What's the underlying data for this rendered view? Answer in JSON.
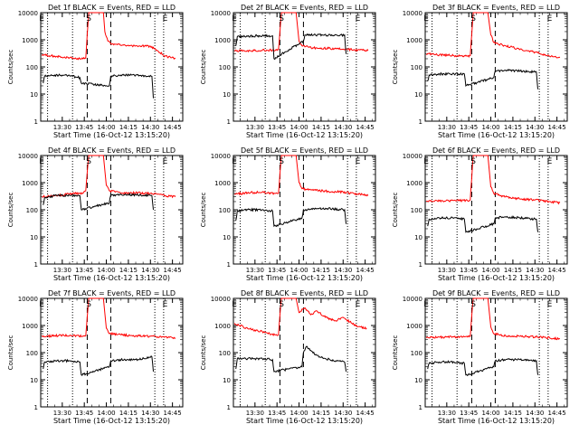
{
  "chart_data": [
    {
      "type": "line",
      "title": "Det 1f BLACK = Events, RED = LLD",
      "xlabel": "Start Time (16-Oct-12 13:15:20)",
      "ylabel": "Counts/sec",
      "ylim": [
        1,
        10000
      ],
      "yscale": "log",
      "x_ticks": [
        "13:30",
        "13:45",
        "14:00",
        "14:15",
        "14:30",
        "14:45"
      ],
      "y_ticks": [
        "1",
        "10",
        "100",
        "1000",
        "10000"
      ],
      "markers": [
        "E",
        "S",
        "E"
      ],
      "series": [
        {
          "name": "RED = LLD",
          "color": "#ff0000",
          "x": [
            "13:16",
            "13:25",
            "13:35",
            "13:44",
            "13:46",
            "13:48",
            "13:58",
            "13:59",
            "14:01",
            "14:04",
            "14:10",
            "14:20",
            "14:30",
            "14:40",
            "14:47"
          ],
          "y": [
            280,
            250,
            220,
            200,
            210,
            10000,
            10000,
            2000,
            900,
            700,
            620,
            600,
            580,
            250,
            200
          ]
        },
        {
          "name": "BLACK = Events",
          "color": "#000000",
          "x": [
            "13:17",
            "13:18",
            "13:25",
            "13:35",
            "13:42",
            "13:43",
            "14:02",
            "14:03",
            "14:10",
            "14:20",
            "14:31",
            "14:32"
          ],
          "y": [
            25,
            45,
            50,
            48,
            40,
            25,
            20,
            45,
            50,
            50,
            45,
            7
          ]
        }
      ]
    },
    {
      "type": "line",
      "title": "Det 2f BLACK = Events, RED = LLD",
      "xlabel": "Start Time (16-Oct-12 13:15:20)",
      "ylabel": "Counts/sec",
      "ylim": [
        1,
        10000
      ],
      "yscale": "log",
      "x_ticks": [
        "13:30",
        "13:45",
        "14:00",
        "14:15",
        "14:30",
        "14:45"
      ],
      "y_ticks": [
        "1",
        "10",
        "100",
        "1000",
        "10000"
      ],
      "markers": [
        "E",
        "S",
        "E"
      ],
      "series": [
        {
          "name": "RED = LLD",
          "color": "#ff0000",
          "x": [
            "13:16",
            "13:25",
            "13:35",
            "13:44",
            "13:46",
            "13:48",
            "13:58",
            "14:00",
            "14:02",
            "14:10",
            "14:20",
            "14:30",
            "14:40",
            "14:47"
          ],
          "y": [
            380,
            400,
            410,
            420,
            430,
            10000,
            10000,
            900,
            600,
            500,
            480,
            450,
            420,
            400
          ]
        },
        {
          "name": "BLACK = Events",
          "color": "#000000",
          "x": [
            "13:17",
            "13:18",
            "13:25",
            "13:35",
            "13:42",
            "13:43",
            "14:03",
            "14:04",
            "14:10",
            "14:20",
            "14:31",
            "14:32"
          ],
          "y": [
            600,
            1300,
            1350,
            1400,
            1400,
            200,
            900,
            1500,
            1500,
            1500,
            1500,
            300
          ]
        }
      ]
    },
    {
      "type": "line",
      "title": "Det 3f BLACK = Events, RED = LLD",
      "xlabel": "Start Time (16-Oct-12 13:15:20)",
      "ylabel": "Counts/sec",
      "ylim": [
        1,
        10000
      ],
      "yscale": "log",
      "x_ticks": [
        "13:30",
        "13:45",
        "14:00",
        "14:15",
        "14:30",
        "14:45"
      ],
      "y_ticks": [
        "1",
        "10",
        "100",
        "1000",
        "10000"
      ],
      "markers": [
        "E",
        "S",
        "E"
      ],
      "series": [
        {
          "name": "RED = LLD",
          "color": "#ff0000",
          "x": [
            "13:16",
            "13:25",
            "13:35",
            "13:44",
            "13:46",
            "13:48",
            "13:58",
            "14:00",
            "14:02",
            "14:10",
            "14:20",
            "14:30",
            "14:40",
            "14:47"
          ],
          "y": [
            300,
            280,
            260,
            250,
            260,
            10000,
            10000,
            1500,
            800,
            600,
            450,
            350,
            250,
            220
          ]
        },
        {
          "name": "BLACK = Events",
          "color": "#000000",
          "x": [
            "13:17",
            "13:18",
            "13:25",
            "13:35",
            "13:42",
            "13:43",
            "14:02",
            "14:03",
            "14:10",
            "14:20",
            "14:31",
            "14:32"
          ],
          "y": [
            30,
            50,
            55,
            55,
            55,
            20,
            40,
            70,
            75,
            70,
            65,
            15
          ]
        }
      ]
    },
    {
      "type": "line",
      "title": "Det 4f BLACK = Events, RED = LLD",
      "xlabel": "Start Time (16-Oct-12 13:15:20)",
      "ylabel": "Counts/sec",
      "ylim": [
        1,
        10000
      ],
      "yscale": "log",
      "x_ticks": [
        "13:30",
        "13:45",
        "14:00",
        "14:15",
        "14:30",
        "14:45"
      ],
      "y_ticks": [
        "1",
        "10",
        "100",
        "1000",
        "10000"
      ],
      "markers": [
        "E",
        "S",
        "E"
      ],
      "series": [
        {
          "name": "RED = LLD",
          "color": "#ff0000",
          "x": [
            "13:16",
            "13:25",
            "13:35",
            "13:44",
            "13:46",
            "13:48",
            "13:58",
            "14:00",
            "14:02",
            "14:10",
            "14:20",
            "14:30",
            "14:40",
            "14:47"
          ],
          "y": [
            300,
            330,
            380,
            420,
            500,
            10000,
            10000,
            800,
            500,
            420,
            420,
            400,
            330,
            300
          ]
        },
        {
          "name": "BLACK = Events",
          "color": "#000000",
          "x": [
            "13:17",
            "13:18",
            "13:25",
            "13:35",
            "13:42",
            "13:43",
            "14:02",
            "14:03",
            "14:10",
            "14:20",
            "14:31",
            "14:32"
          ],
          "y": [
            150,
            280,
            330,
            340,
            330,
            100,
            180,
            340,
            360,
            360,
            330,
            100
          ]
        }
      ]
    },
    {
      "type": "line",
      "title": "Det 5f BLACK = Events, RED = LLD",
      "xlabel": "Start Time (16-Oct-12 13:15:20)",
      "ylabel": "Counts/sec",
      "ylim": [
        1,
        10000
      ],
      "yscale": "log",
      "x_ticks": [
        "13:30",
        "13:45",
        "14:00",
        "14:15",
        "14:30",
        "14:45"
      ],
      "y_ticks": [
        "1",
        "10",
        "100",
        "1000",
        "10000"
      ],
      "markers": [
        "E",
        "S",
        "E"
      ],
      "series": [
        {
          "name": "RED = LLD",
          "color": "#ff0000",
          "x": [
            "13:16",
            "13:25",
            "13:35",
            "13:44",
            "13:46",
            "13:48",
            "13:58",
            "14:00",
            "14:02",
            "14:10",
            "14:20",
            "14:30",
            "14:40",
            "14:47"
          ],
          "y": [
            380,
            420,
            450,
            400,
            400,
            10000,
            10000,
            1000,
            600,
            520,
            480,
            450,
            380,
            330
          ]
        },
        {
          "name": "BLACK = Events",
          "color": "#000000",
          "x": [
            "13:17",
            "13:18",
            "13:25",
            "13:35",
            "13:42",
            "13:43",
            "14:02",
            "14:03",
            "14:10",
            "14:20",
            "14:31",
            "14:32"
          ],
          "y": [
            40,
            90,
            100,
            100,
            90,
            25,
            50,
            100,
            110,
            110,
            100,
            30
          ]
        }
      ]
    },
    {
      "type": "line",
      "title": "Det 6f BLACK = Events, RED = LLD",
      "xlabel": "Start Time (16-Oct-12 13:15:20)",
      "ylabel": "Counts/sec",
      "ylim": [
        1,
        10000
      ],
      "yscale": "log",
      "x_ticks": [
        "13:30",
        "13:45",
        "14:00",
        "14:15",
        "14:30",
        "14:45"
      ],
      "y_ticks": [
        "1",
        "10",
        "100",
        "1000",
        "10000"
      ],
      "markers": [
        "E",
        "S",
        "E"
      ],
      "series": [
        {
          "name": "RED = LLD",
          "color": "#ff0000",
          "x": [
            "13:16",
            "13:25",
            "13:35",
            "13:44",
            "13:46",
            "13:48",
            "13:58",
            "14:00",
            "14:02",
            "14:10",
            "14:20",
            "14:30",
            "14:40",
            "14:47"
          ],
          "y": [
            200,
            210,
            220,
            220,
            230,
            10000,
            10000,
            700,
            400,
            300,
            250,
            230,
            200,
            180
          ]
        },
        {
          "name": "BLACK = Events",
          "color": "#000000",
          "x": [
            "13:17",
            "13:18",
            "13:25",
            "13:35",
            "13:42",
            "13:43",
            "14:02",
            "14:03",
            "14:10",
            "14:20",
            "14:31",
            "14:32"
          ],
          "y": [
            25,
            45,
            50,
            50,
            45,
            15,
            30,
            50,
            55,
            50,
            45,
            15
          ]
        }
      ]
    },
    {
      "type": "line",
      "title": "Det 7f BLACK = Events, RED = LLD",
      "xlabel": "Start Time (16-Oct-12 13:15:20)",
      "ylabel": "Counts/sec",
      "ylim": [
        1,
        10000
      ],
      "yscale": "log",
      "x_ticks": [
        "13:30",
        "13:45",
        "14:00",
        "14:15",
        "14:30",
        "14:45"
      ],
      "y_ticks": [
        "1",
        "10",
        "100",
        "1000",
        "10000"
      ],
      "markers": [
        "E",
        "S",
        "E"
      ],
      "series": [
        {
          "name": "RED = LLD",
          "color": "#ff0000",
          "x": [
            "13:16",
            "13:25",
            "13:35",
            "13:44",
            "13:46",
            "13:48",
            "13:58",
            "14:00",
            "14:02",
            "14:10",
            "14:20",
            "14:30",
            "14:40",
            "14:47"
          ],
          "y": [
            400,
            420,
            430,
            410,
            420,
            10000,
            10000,
            800,
            500,
            450,
            420,
            400,
            380,
            350
          ]
        },
        {
          "name": "BLACK = Events",
          "color": "#000000",
          "x": [
            "13:17",
            "13:18",
            "13:25",
            "13:35",
            "13:42",
            "13:43",
            "14:02",
            "14:03",
            "14:10",
            "14:20",
            "14:31",
            "14:32"
          ],
          "y": [
            25,
            45,
            50,
            50,
            45,
            15,
            30,
            50,
            55,
            55,
            70,
            20
          ]
        }
      ]
    },
    {
      "type": "line",
      "title": "Det 8f BLACK = Events, RED = LLD",
      "xlabel": "Start Time (16-Oct-12 13:15:20)",
      "ylabel": "Counts/sec",
      "ylim": [
        1,
        10000
      ],
      "yscale": "log",
      "x_ticks": [
        "13:30",
        "13:45",
        "14:00",
        "14:15",
        "14:30",
        "14:45"
      ],
      "y_ticks": [
        "1",
        "10",
        "100",
        "1000",
        "10000"
      ],
      "markers": [
        "E",
        "S",
        "E"
      ],
      "series": [
        {
          "name": "RED = LLD",
          "color": "#ff0000",
          "x": [
            "13:16",
            "13:22",
            "13:28",
            "13:35",
            "13:40",
            "13:44",
            "13:46",
            "13:48",
            "13:58",
            "14:00",
            "14:04",
            "14:08",
            "14:12",
            "14:18",
            "14:25",
            "14:30",
            "14:36",
            "14:40",
            "14:46"
          ],
          "y": [
            1200,
            900,
            700,
            600,
            500,
            450,
            460,
            10000,
            10000,
            3000,
            4500,
            2500,
            3500,
            2000,
            1500,
            2000,
            1200,
            900,
            800
          ]
        },
        {
          "name": "BLACK = Events",
          "color": "#000000",
          "x": [
            "13:17",
            "13:18",
            "13:25",
            "13:35",
            "13:42",
            "13:43",
            "14:02",
            "14:03",
            "14:05",
            "14:08",
            "14:12",
            "14:18",
            "14:25",
            "14:31",
            "14:32"
          ],
          "y": [
            25,
            60,
            60,
            60,
            55,
            20,
            30,
            100,
            170,
            120,
            80,
            60,
            50,
            45,
            20
          ]
        }
      ]
    },
    {
      "type": "line",
      "title": "Det 9f BLACK = Events, RED = LLD",
      "xlabel": "Start Time (16-Oct-12 13:15:20)",
      "ylabel": "Counts/sec",
      "ylim": [
        1,
        10000
      ],
      "yscale": "log",
      "x_ticks": [
        "13:30",
        "13:45",
        "14:00",
        "14:15",
        "14:30",
        "14:45"
      ],
      "y_ticks": [
        "1",
        "10",
        "100",
        "1000",
        "10000"
      ],
      "markers": [
        "E",
        "S",
        "E"
      ],
      "series": [
        {
          "name": "RED = LLD",
          "color": "#ff0000",
          "x": [
            "13:16",
            "13:25",
            "13:35",
            "13:44",
            "13:46",
            "13:48",
            "13:58",
            "14:00",
            "14:02",
            "14:10",
            "14:20",
            "14:30",
            "14:40",
            "14:47"
          ],
          "y": [
            350,
            370,
            380,
            380,
            400,
            10000,
            10000,
            900,
            500,
            420,
            400,
            380,
            350,
            320
          ]
        },
        {
          "name": "BLACK = Events",
          "color": "#000000",
          "x": [
            "13:17",
            "13:18",
            "13:25",
            "13:35",
            "13:42",
            "13:43",
            "14:02",
            "14:03",
            "14:10",
            "14:20",
            "14:31",
            "14:32"
          ],
          "y": [
            25,
            40,
            45,
            45,
            40,
            15,
            30,
            50,
            55,
            55,
            50,
            15
          ]
        }
      ]
    }
  ]
}
